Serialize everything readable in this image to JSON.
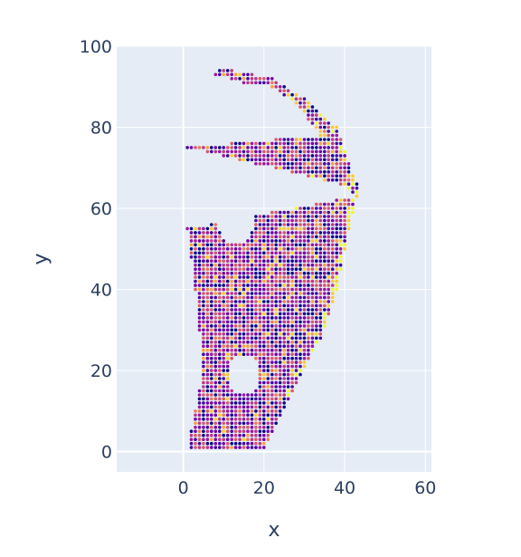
{
  "chart_data": {
    "type": "scatter",
    "title": "",
    "xlabel": "x",
    "ylabel": "y",
    "xlim": [
      -16.5,
      61.5
    ],
    "ylim": [
      -5,
      100
    ],
    "x_ticks": [
      0,
      20,
      40,
      60
    ],
    "y_ticks": [
      0,
      20,
      40,
      60,
      80,
      100
    ],
    "x_tick_labels": [
      "0",
      "20",
      "40",
      "60"
    ],
    "y_tick_labels": [
      "0",
      "20",
      "40",
      "60",
      "80",
      "100"
    ],
    "grid": true,
    "legend": "none",
    "point_spacing": 1,
    "colors": {
      "plot_background": "#e5ecf6",
      "grid": "#ffffff",
      "text": "#2a3f5f",
      "colorscale": [
        "#0d0887",
        "#46039f",
        "#7201a8",
        "#9c179e",
        "#bd3786",
        "#d8576b",
        "#ed7953",
        "#fb9f3a",
        "#fdca26",
        "#f0f921"
      ]
    },
    "region_outline": {
      "left_edge": [
        [
          1,
          0
        ],
        [
          5,
          20
        ],
        [
          3,
          40
        ],
        [
          1,
          55
        ],
        [
          1,
          75
        ],
        [
          4,
          94
        ],
        [
          9,
          94
        ],
        [
          15,
          91
        ],
        [
          22,
          90
        ],
        [
          28,
          86
        ],
        [
          34,
          78
        ],
        [
          39,
          66
        ],
        [
          43,
          63
        ]
      ],
      "right_edge": [
        [
          43,
          63
        ],
        [
          41,
          55
        ],
        [
          38,
          40
        ],
        [
          34,
          28
        ],
        [
          27,
          15
        ],
        [
          22,
          5
        ],
        [
          20,
          1
        ]
      ],
      "y_range": [
        1,
        94
      ]
    },
    "holes": [
      {
        "center": [
          13,
          57
        ],
        "radius": [
          4.5,
          6
        ]
      },
      {
        "center": [
          15,
          19
        ],
        "radius": [
          4,
          5
        ]
      }
    ]
  }
}
